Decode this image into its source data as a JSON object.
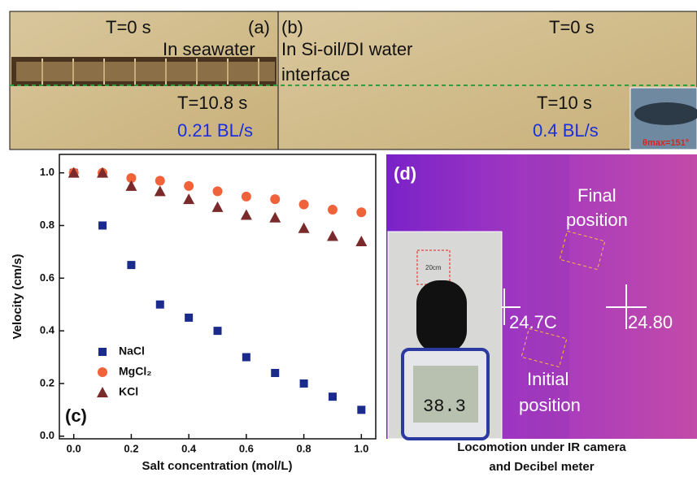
{
  "panel_a": {
    "label": "(a)",
    "time_top": "T=0 s",
    "medium": "In seawater",
    "time_bottom": "T=10.8 s",
    "speed": "0.21 BL/s"
  },
  "panel_b": {
    "label": "(b)",
    "time_top": "T=0 s",
    "medium_line1": "In Si-oil/DI water",
    "medium_line2": "interface",
    "time_bottom": "T=10 s",
    "speed": "0.4 BL/s",
    "inset_angle": "θmax=151°"
  },
  "panel_d": {
    "label": "(d)",
    "final_line1": "Final",
    "final_line2": "position",
    "initial_line1": "Initial",
    "initial_line2": "position",
    "temp_left": "24.7C",
    "temp_right": "24.80",
    "meter_reading": "38.3",
    "ruler_mark": "20cm",
    "caption_line1": "Locomotion under IR camera",
    "caption_line2": "and Decibel meter"
  },
  "chart_data": {
    "type": "scatter",
    "annotation": "(c)",
    "x_label": "Salt concentration (mol/L)",
    "y_label": "Velocity (cm/s)",
    "x": [
      0,
      0.1,
      0.2,
      0.3,
      0.4,
      0.5,
      0.6,
      0.7,
      0.8,
      0.9,
      1.0
    ],
    "series": [
      {
        "name": "NaCl",
        "color": "#1a2b8c",
        "marker": "square",
        "values": [
          1.0,
          0.8,
          0.65,
          0.5,
          0.45,
          0.4,
          0.3,
          0.24,
          0.2,
          0.15,
          0.1
        ]
      },
      {
        "name": "MgCl₂",
        "color": "#f0623a",
        "marker": "circle",
        "values": [
          1.0,
          1.0,
          0.98,
          0.97,
          0.95,
          0.93,
          0.91,
          0.9,
          0.88,
          0.86,
          0.85
        ]
      },
      {
        "name": "KCl",
        "color": "#7a2a2a",
        "marker": "triangle",
        "values": [
          1.0,
          1.0,
          0.95,
          0.93,
          0.9,
          0.87,
          0.84,
          0.83,
          0.79,
          0.76,
          0.74
        ]
      }
    ],
    "xlim": [
      -0.05,
      1.05
    ],
    "ylim": [
      -0.01,
      1.07
    ],
    "xticks": [
      {
        "value": 0,
        "label": "0.0"
      },
      {
        "value": 0.2,
        "label": "0.2"
      },
      {
        "value": 0.4,
        "label": "0.4"
      },
      {
        "value": 0.6,
        "label": "0.6"
      },
      {
        "value": 0.8,
        "label": "0.8"
      },
      {
        "value": 1,
        "label": "1.0"
      }
    ],
    "yticks": [
      {
        "value": 0,
        "label": "0.0"
      },
      {
        "value": 0.2,
        "label": "0.2"
      },
      {
        "value": 0.4,
        "label": "0.4"
      },
      {
        "value": 0.6,
        "label": "0.6"
      },
      {
        "value": 0.8,
        "label": "0.8"
      },
      {
        "value": 1,
        "label": "1.0"
      }
    ]
  }
}
